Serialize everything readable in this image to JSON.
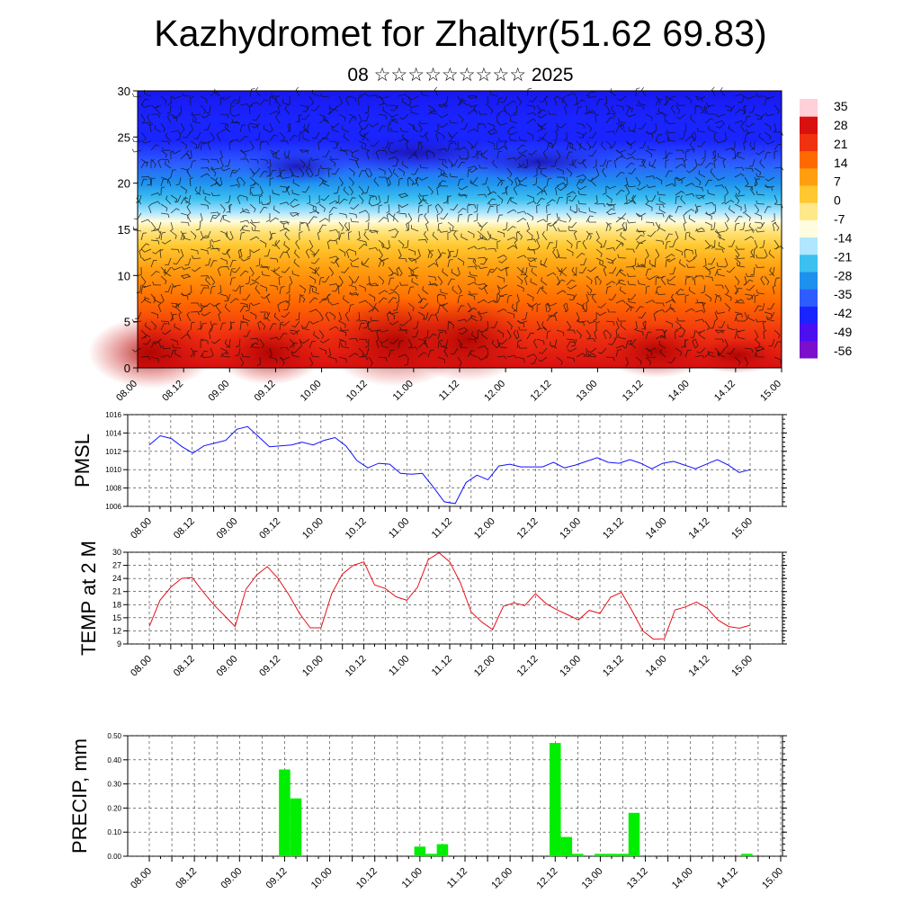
{
  "title": "Kazhydromet for Zhaltyr(51.62 69.83)",
  "subtitle": "08 ☆☆☆☆☆☆☆☆☆ 2025",
  "chart_data": [
    {
      "type": "heatmap",
      "ylim": [
        0,
        30
      ],
      "yticks": [
        0,
        5,
        10,
        15,
        20,
        25,
        30
      ],
      "time_labels": [
        "08.00",
        "08.12",
        "09.00",
        "09.12",
        "10.00",
        "10.12",
        "11.00",
        "11.12",
        "12.00",
        "12.12",
        "13.00",
        "13.12",
        "14.00",
        "14.12",
        "15.00"
      ],
      "colorbar_labels": [
        "35",
        "28",
        "21",
        "14",
        "7",
        "0",
        "-7",
        "-14",
        "-21",
        "-28",
        "-35",
        "-42",
        "-49",
        "-56"
      ],
      "colorbar_colors": [
        "#7a10cc",
        "#4b0ff0",
        "#1a24ff",
        "#2d5cff",
        "#1e90ee",
        "#3cc0f0",
        "#b0e6ff",
        "#fffde0",
        "#ffe88a",
        "#ffc830",
        "#ff9f10",
        "#ff6a00",
        "#f03210",
        "#d81010",
        "#ffd0d8"
      ],
      "wind_barbs": true
    },
    {
      "type": "line",
      "ylabel": "PMSL",
      "ylim": [
        1006,
        1016
      ],
      "yticks": [
        1006,
        1008,
        1010,
        1012,
        1014,
        1016
      ],
      "color": "#1010ff",
      "time_labels": [
        "08.00",
        "08.12",
        "09.00",
        "09.12",
        "10.00",
        "10.12",
        "11.00",
        "11.12",
        "12.00",
        "12.12",
        "13.00",
        "13.12",
        "14.00",
        "14.12",
        "15.00"
      ],
      "values": [
        1012.7,
        1013.7,
        1013.4,
        1012.5,
        1011.8,
        1012.6,
        1012.9,
        1013.2,
        1014.4,
        1014.7,
        1013.6,
        1012.5,
        1012.6,
        1012.7,
        1013.0,
        1012.7,
        1013.2,
        1013.5,
        1012.6,
        1011.0,
        1010.2,
        1010.7,
        1010.6,
        1009.6,
        1009.5,
        1009.6,
        1008.1,
        1006.5,
        1006.3,
        1008.6,
        1009.4,
        1008.9,
        1010.4,
        1010.6,
        1010.3,
        1010.3,
        1010.3,
        1010.8,
        1010.2,
        1010.5,
        1010.9,
        1011.3,
        1010.8,
        1010.7,
        1011.1,
        1010.7,
        1010.1,
        1010.7,
        1010.9,
        1010.5,
        1010.1,
        1010.6,
        1011.1,
        1010.5,
        1009.7,
        1010.0
      ]
    },
    {
      "type": "line",
      "ylabel": "TEMP at 2 M",
      "ylim": [
        9,
        30
      ],
      "yticks": [
        9,
        12,
        15,
        18,
        21,
        24,
        27,
        30
      ],
      "color": "#e8101a",
      "time_labels": [
        "08.00",
        "08.12",
        "09.00",
        "09.12",
        "10.00",
        "10.12",
        "11.00",
        "11.12",
        "12.00",
        "12.12",
        "13.00",
        "13.12",
        "14.00",
        "14.12",
        "15.00"
      ],
      "values": [
        13.0,
        19.0,
        22.0,
        24.0,
        24.2,
        21.0,
        18.0,
        15.5,
        13.0,
        21.5,
        24.8,
        26.7,
        24.0,
        20.3,
        16.0,
        12.7,
        12.7,
        20.5,
        25.0,
        27.0,
        27.8,
        22.5,
        21.7,
        19.8,
        19.0,
        22.0,
        28.3,
        29.9,
        27.8,
        23.0,
        16.3,
        14.0,
        12.3,
        17.6,
        18.4,
        17.8,
        20.5,
        18.2,
        16.8,
        15.7,
        14.5,
        16.7,
        16.0,
        19.7,
        20.8,
        16.6,
        12.0,
        10.1,
        10.2,
        16.8,
        17.5,
        18.6,
        17.2,
        14.5,
        13.0,
        12.6,
        13.3
      ]
    },
    {
      "type": "bar",
      "ylabel": "PRECIP, mm",
      "ylim": [
        0,
        0.5
      ],
      "yticks": [
        "0.00",
        "0.10",
        "0.20",
        "0.30",
        "0.40",
        "0.50"
      ],
      "color": "#00ee00",
      "time_labels": [
        "08.00",
        "08.12",
        "09.00",
        "09.12",
        "10.00",
        "10.12",
        "11.00",
        "11.12",
        "12.00",
        "12.12",
        "13.00",
        "13.12",
        "14.00",
        "14.12",
        "15.00"
      ],
      "values": [
        0,
        0,
        0,
        0,
        0,
        0,
        0,
        0,
        0,
        0,
        0,
        0,
        0.36,
        0.24,
        0,
        0,
        0,
        0,
        0,
        0,
        0,
        0,
        0,
        0,
        0.04,
        0.01,
        0.05,
        0,
        0,
        0,
        0,
        0,
        0,
        0,
        0,
        0,
        0.47,
        0.08,
        0.01,
        0,
        0.01,
        0.01,
        0.01,
        0.18,
        0,
        0,
        0,
        0,
        0,
        0,
        0,
        0,
        0,
        0.01,
        0,
        0,
        0
      ]
    }
  ]
}
